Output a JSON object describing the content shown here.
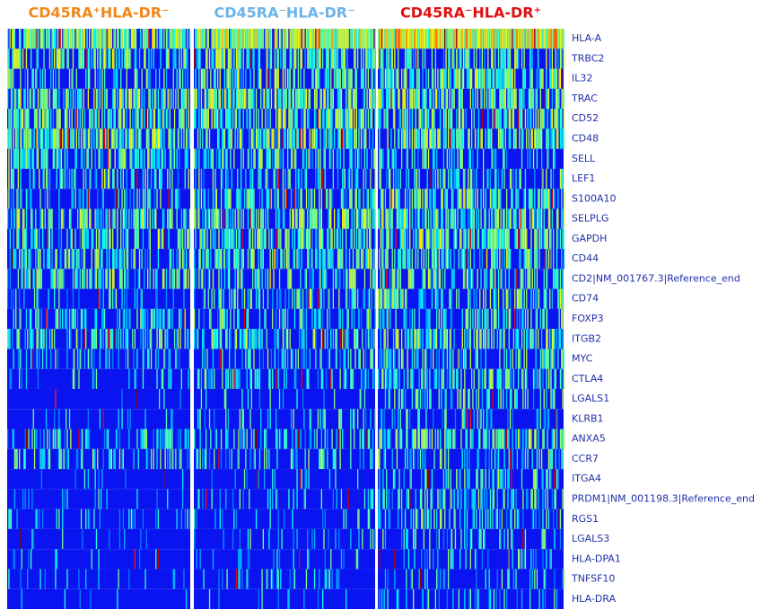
{
  "chart_data": {
    "type": "heatmap",
    "groups": [
      {
        "name": "CD45RA⁺HLA-DR⁻",
        "color": "#f0881a"
      },
      {
        "name": "CD45RA⁻HLA-DR⁻",
        "color": "#6cb4e8"
      },
      {
        "name": "CD45RA⁻HLA-DR⁺",
        "color": "#e01010"
      }
    ],
    "rows": [
      "HLA-A",
      "TRBC2",
      "IL32",
      "TRAC",
      "CD52",
      "CD48",
      "SELL",
      "LEF1",
      "S100A10",
      "SELPLG",
      "GAPDH",
      "CD44",
      "CD2|NM_001767.3|Reference_end",
      "CD74",
      "FOXP3",
      "ITGB2",
      "MYC",
      "CTLA4",
      "LGALS1",
      "KLRB1",
      "ANXA5",
      "CCR7",
      "ITGA4",
      "PRDM1|NM_001198.3|Reference_end",
      "RGS1",
      "LGALS3",
      "HLA-DPA1",
      "TNFSF10",
      "HLA-DRA"
    ],
    "values": [
      [
        0.6,
        0.7,
        0.85
      ],
      [
        0.45,
        0.45,
        0.4
      ],
      [
        0.3,
        0.45,
        0.5
      ],
      [
        0.5,
        0.5,
        0.5
      ],
      [
        0.45,
        0.45,
        0.45
      ],
      [
        0.5,
        0.5,
        0.5
      ],
      [
        0.4,
        0.35,
        0.3
      ],
      [
        0.35,
        0.3,
        0.3
      ],
      [
        0.25,
        0.35,
        0.45
      ],
      [
        0.45,
        0.45,
        0.45
      ],
      [
        0.4,
        0.4,
        0.5
      ],
      [
        0.35,
        0.4,
        0.45
      ],
      [
        0.4,
        0.35,
        0.4
      ],
      [
        0.15,
        0.3,
        0.35
      ],
      [
        0.3,
        0.3,
        0.35
      ],
      [
        0.35,
        0.35,
        0.4
      ],
      [
        0.2,
        0.25,
        0.3
      ],
      [
        0.15,
        0.25,
        0.35
      ],
      [
        0.05,
        0.15,
        0.35
      ],
      [
        0.05,
        0.2,
        0.2
      ],
      [
        0.25,
        0.25,
        0.45
      ],
      [
        0.3,
        0.25,
        0.25
      ],
      [
        0.05,
        0.1,
        0.3
      ],
      [
        0.1,
        0.15,
        0.3
      ],
      [
        0.1,
        0.15,
        0.3
      ],
      [
        0.05,
        0.15,
        0.25
      ],
      [
        0.05,
        0.1,
        0.2
      ],
      [
        0.1,
        0.1,
        0.15
      ],
      [
        0.02,
        0.05,
        0.2
      ]
    ],
    "low_color": "#0a14f0"
  }
}
